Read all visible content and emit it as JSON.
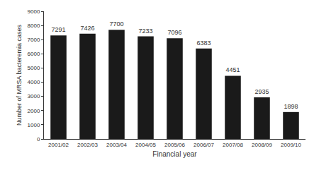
{
  "chart_data": {
    "type": "bar",
    "categories": [
      "2001/02",
      "2002/03",
      "2003/04",
      "2004/05",
      "2005/06",
      "2006/07",
      "2007/08",
      "2008/09",
      "2009/10"
    ],
    "values": [
      7291,
      7426,
      7700,
      7233,
      7096,
      6383,
      4451,
      2935,
      1898
    ],
    "color": "#1a1a1a",
    "x_label": "Financial year",
    "y_label": "Number of MRSA bacteremia cases",
    "ylim": [
      0,
      9000
    ],
    "yticks": [
      0,
      1000,
      2000,
      3000,
      4000,
      5000,
      6000,
      7000,
      8000,
      9000
    ],
    "grid": false,
    "data_labels": true
  }
}
